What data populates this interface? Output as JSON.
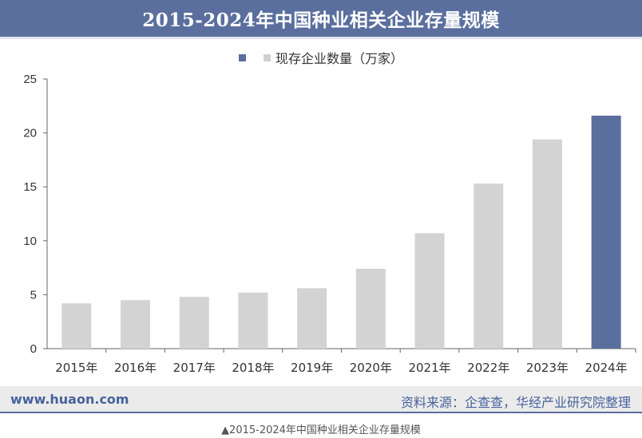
{
  "title": "2015-2024年中国种业相关企业存量规模",
  "legend": {
    "label": "现存企业数量（万家）"
  },
  "footer": {
    "website": "www.huaon.com",
    "source": "资料来源：企查查，华经产业研究院整理"
  },
  "caption": "▲2015-2024年中国种业相关企业存量规模",
  "colors": {
    "title_bg": "#5b6f9e",
    "bar_default": "#d3d3d3",
    "bar_highlight": "#5b6f9e",
    "axis": "#666666"
  },
  "chart_data": {
    "type": "bar",
    "categories": [
      "2015年",
      "2016年",
      "2017年",
      "2018年",
      "2019年",
      "2020年",
      "2021年",
      "2022年",
      "2023年",
      "2024年"
    ],
    "series": [
      {
        "name": "现存企业数量（万家）",
        "values": [
          4.2,
          4.5,
          4.8,
          5.2,
          5.6,
          7.4,
          10.7,
          15.3,
          19.4,
          21.6
        ]
      }
    ],
    "highlight_index": 9,
    "ylim": [
      0,
      25
    ],
    "yticks": [
      0,
      5,
      10,
      15,
      20,
      25
    ],
    "grid": false,
    "legend_position": "top-center"
  }
}
